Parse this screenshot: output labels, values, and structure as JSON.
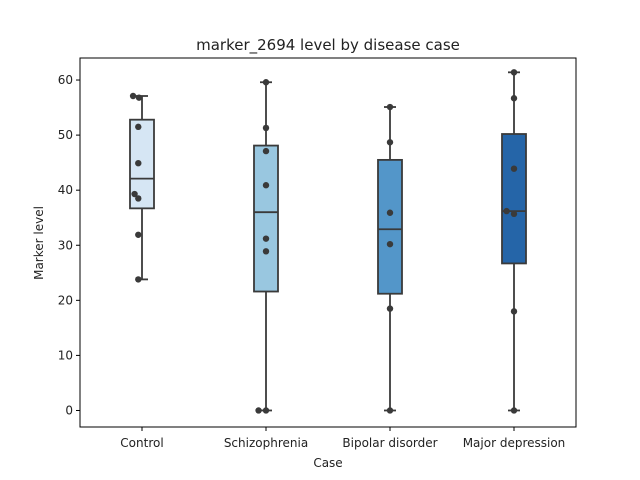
{
  "chart_data": {
    "type": "box",
    "title": "marker_2694 level by disease case",
    "xlabel": "Case",
    "ylabel": "Marker level",
    "ylim": [
      -3,
      64
    ],
    "yticks": [
      0,
      10,
      20,
      30,
      40,
      50,
      60
    ],
    "categories": [
      "Control",
      "Schizophrenia",
      "Bipolar disorder",
      "Major depression"
    ],
    "colors": [
      "#d6e6f4",
      "#99c7e0",
      "#5396c9",
      "#2565a8"
    ],
    "boxes": [
      {
        "category": "Control",
        "whisker_low": 23.8,
        "q1": 36.7,
        "median": 42.1,
        "q3": 52.8,
        "whisker_high": 57.1
      },
      {
        "category": "Schizophrenia",
        "whisker_low": 0,
        "q1": 21.6,
        "median": 36.0,
        "q3": 48.1,
        "whisker_high": 59.6
      },
      {
        "category": "Bipolar disorder",
        "whisker_low": 0,
        "q1": 21.2,
        "median": 32.9,
        "q3": 45.5,
        "whisker_high": 55.1
      },
      {
        "category": "Major depression",
        "whisker_low": 0,
        "q1": 26.7,
        "median": 36.2,
        "q3": 50.2,
        "whisker_high": 61.4
      }
    ],
    "points": [
      {
        "category": "Control",
        "values": [
          57.1,
          56.8,
          51.5,
          44.9,
          39.3,
          38.5,
          31.9,
          23.8
        ],
        "offsets": [
          -0.12,
          -0.04,
          -0.05,
          -0.05,
          -0.1,
          -0.05,
          -0.05,
          -0.05
        ]
      },
      {
        "category": "Schizophrenia",
        "values": [
          59.6,
          51.3,
          47.1,
          40.9,
          31.2,
          28.9,
          0.0,
          0.0
        ],
        "offsets": [
          0.0,
          0.0,
          0.0,
          0.0,
          0.0,
          0.0,
          -0.1,
          0.0
        ]
      },
      {
        "category": "Bipolar disorder",
        "values": [
          55.1,
          48.7,
          35.9,
          30.2,
          18.5,
          0.0
        ],
        "offsets": [
          0.0,
          0.0,
          0.0,
          0.0,
          0.0,
          0.0
        ]
      },
      {
        "category": "Major depression",
        "values": [
          61.4,
          56.7,
          43.9,
          36.2,
          35.7,
          18.0,
          0.0
        ],
        "offsets": [
          0.0,
          0.0,
          0.0,
          -0.1,
          0.0,
          0.0,
          0.0
        ]
      }
    ],
    "grid": false,
    "legend": "none"
  }
}
